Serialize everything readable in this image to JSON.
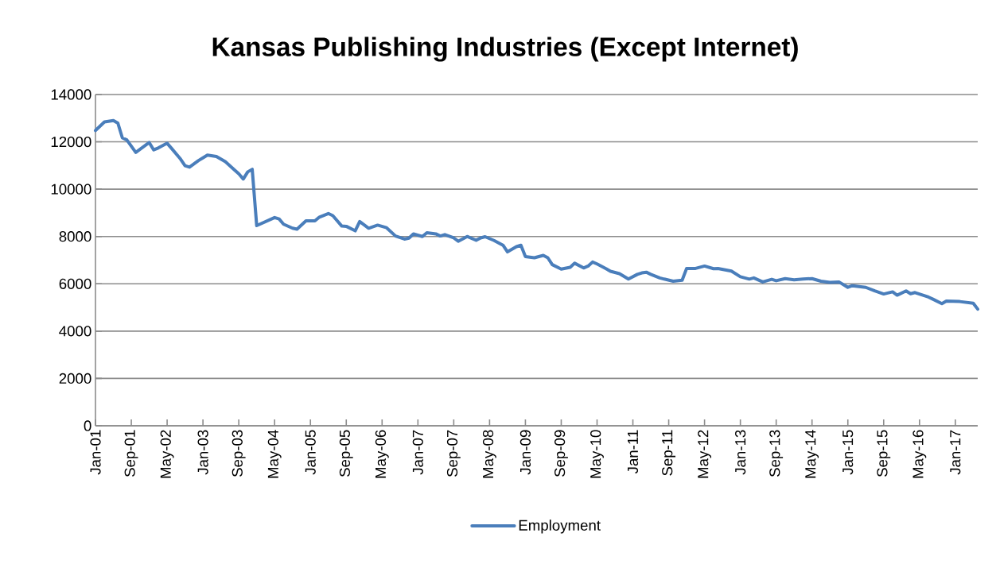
{
  "chart_data": {
    "type": "line",
    "title": "Kansas Publishing Industries (Except Internet)",
    "x": [
      "2001-01",
      "2001-03",
      "2001-05",
      "2001-06",
      "2001-07",
      "2001-08",
      "2001-10",
      "2002-01",
      "2002-02",
      "2002-03",
      "2002-05",
      "2002-06",
      "2002-08",
      "2002-09",
      "2002-10",
      "2002-12",
      "2003-02",
      "2003-04",
      "2003-06",
      "2003-08",
      "2003-09",
      "2003-10",
      "2003-11",
      "2003-12",
      "2004-01",
      "2004-05",
      "2004-06",
      "2004-07",
      "2004-09",
      "2004-10",
      "2004-12",
      "2005-02",
      "2005-03",
      "2005-05",
      "2005-06",
      "2005-08",
      "2005-09",
      "2005-11",
      "2005-12",
      "2006-02",
      "2006-04",
      "2006-06",
      "2006-08",
      "2006-10",
      "2006-11",
      "2006-12",
      "2007-02",
      "2007-03",
      "2007-05",
      "2007-06",
      "2007-07",
      "2007-09",
      "2007-10",
      "2007-12",
      "2008-02",
      "2008-03",
      "2008-04",
      "2008-06",
      "2008-08",
      "2008-09",
      "2008-11",
      "2008-12",
      "2009-01",
      "2009-03",
      "2009-05",
      "2009-06",
      "2009-07",
      "2009-09",
      "2009-11",
      "2009-12",
      "2010-02",
      "2010-03",
      "2010-04",
      "2010-05",
      "2010-07",
      "2010-08",
      "2010-10",
      "2010-12",
      "2011-02",
      "2011-03",
      "2011-04",
      "2011-05",
      "2011-07",
      "2011-08",
      "2011-10",
      "2011-12",
      "2012-01",
      "2012-03",
      "2012-05",
      "2012-07",
      "2012-08",
      "2012-11",
      "2013-01",
      "2013-03",
      "2013-04",
      "2013-06",
      "2013-08",
      "2013-09",
      "2013-11",
      "2014-01",
      "2014-03",
      "2014-05",
      "2014-07",
      "2014-09",
      "2014-11",
      "2015-01",
      "2015-02",
      "2015-05",
      "2015-07",
      "2015-09",
      "2015-11",
      "2015-12",
      "2016-02",
      "2016-03",
      "2016-04",
      "2016-07",
      "2016-08",
      "2016-10",
      "2016-11",
      "2017-02",
      "2017-05",
      "2017-06"
    ],
    "series": [
      {
        "name": "Employment",
        "color": "#4a7ebb",
        "values": [
          12480,
          12840,
          12900,
          12790,
          12170,
          12080,
          11550,
          11970,
          11660,
          11740,
          11940,
          11720,
          11270,
          10990,
          10930,
          11210,
          11440,
          11380,
          11160,
          10820,
          10650,
          10430,
          10730,
          10840,
          8460,
          8800,
          8740,
          8520,
          8350,
          8310,
          8660,
          8660,
          8820,
          8970,
          8880,
          8440,
          8430,
          8240,
          8630,
          8350,
          8480,
          8370,
          8020,
          7890,
          7930,
          8110,
          8000,
          8160,
          8110,
          8020,
          8080,
          7940,
          7800,
          8000,
          7840,
          7940,
          7990,
          7830,
          7630,
          7350,
          7570,
          7630,
          7150,
          7100,
          7200,
          7100,
          6810,
          6620,
          6700,
          6870,
          6670,
          6750,
          6920,
          6840,
          6640,
          6530,
          6430,
          6200,
          6400,
          6460,
          6490,
          6400,
          6250,
          6200,
          6110,
          6150,
          6650,
          6650,
          6750,
          6640,
          6650,
          6540,
          6300,
          6200,
          6250,
          6080,
          6190,
          6130,
          6220,
          6170,
          6200,
          6220,
          6110,
          6060,
          6080,
          5850,
          5920,
          5850,
          5700,
          5570,
          5660,
          5520,
          5700,
          5580,
          5630,
          5440,
          5350,
          5160,
          5270,
          5250,
          5180,
          4930
        ]
      }
    ],
    "xlim": [
      "2001-01",
      "2017-06"
    ],
    "xticks": [
      {
        "value": "2001-01",
        "label": "Jan-01"
      },
      {
        "value": "2001-09",
        "label": "Sep-01"
      },
      {
        "value": "2002-05",
        "label": "May-02"
      },
      {
        "value": "2003-01",
        "label": "Jan-03"
      },
      {
        "value": "2003-09",
        "label": "Sep-03"
      },
      {
        "value": "2004-05",
        "label": "May-04"
      },
      {
        "value": "2005-01",
        "label": "Jan-05"
      },
      {
        "value": "2005-09",
        "label": "Sep-05"
      },
      {
        "value": "2006-05",
        "label": "May-06"
      },
      {
        "value": "2007-01",
        "label": "Jan-07"
      },
      {
        "value": "2007-09",
        "label": "Sep-07"
      },
      {
        "value": "2008-05",
        "label": "May-08"
      },
      {
        "value": "2009-01",
        "label": "Jan-09"
      },
      {
        "value": "2009-09",
        "label": "Sep-09"
      },
      {
        "value": "2010-05",
        "label": "May-10"
      },
      {
        "value": "2011-01",
        "label": "Jan-11"
      },
      {
        "value": "2011-09",
        "label": "Sep-11"
      },
      {
        "value": "2012-05",
        "label": "May-12"
      },
      {
        "value": "2013-01",
        "label": "Jan-13"
      },
      {
        "value": "2013-09",
        "label": "Sep-13"
      },
      {
        "value": "2014-05",
        "label": "May-14"
      },
      {
        "value": "2015-01",
        "label": "Jan-15"
      },
      {
        "value": "2015-09",
        "label": "Sep-15"
      },
      {
        "value": "2016-05",
        "label": "May-16"
      },
      {
        "value": "2017-01",
        "label": "Jan-17"
      }
    ],
    "ylim": [
      0,
      14000
    ],
    "yticks": [
      0,
      2000,
      4000,
      6000,
      8000,
      10000,
      12000,
      14000
    ],
    "grid": "y",
    "legend": "bottom",
    "marker": "none",
    "line_style": "solid"
  }
}
